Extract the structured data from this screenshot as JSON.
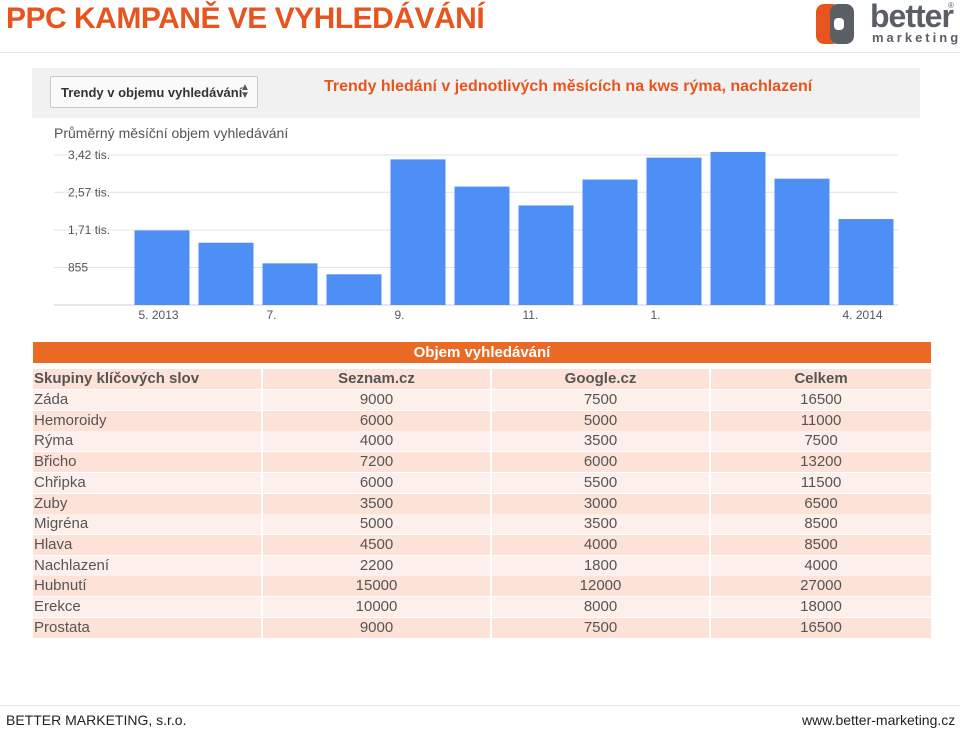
{
  "slide": {
    "title": "PPC KAMPANĚ VE VYHLEDÁVÁNÍ"
  },
  "logo": {
    "word1": "better",
    "word2": "marketing",
    "reg": "®",
    "colors": {
      "orange": "#e8541e",
      "gray": "#5a5f66"
    }
  },
  "chart": {
    "dropdown_label": "Trendy v objemu vyhledávání",
    "title": "Trendy hledání v jednotlivých měsících na kws rýma, nachlazení",
    "ylabel": "Průměrný měsíční objem vyhledávání"
  },
  "chart_data": {
    "type": "bar",
    "title": "Trendy hledání v jednotlivých měsících na kws rýma, nachlazení",
    "ylabel": "Průměrný měsíční objem vyhledávání",
    "xlabel": "",
    "yticks": [
      {
        "value": 855,
        "label": "855"
      },
      {
        "value": 1710,
        "label": "1,71 tis."
      },
      {
        "value": 2570,
        "label": "2,57 tis."
      },
      {
        "value": 3420,
        "label": "3,42 tis."
      }
    ],
    "ylim": [
      0,
      3420
    ],
    "categories": [
      "5. 2013",
      "6. 2013",
      "7. 2013",
      "8. 2013",
      "9. 2013",
      "10. 2013",
      "11. 2013",
      "12. 2013",
      "1. 2014",
      "2. 2014",
      "3. 2014",
      "4. 2014"
    ],
    "xtick_labels": [
      "5. 2013",
      "",
      "7.",
      "",
      "9.",
      "",
      "11.",
      "",
      "1.",
      "",
      "",
      "4. 2014"
    ],
    "values": [
      1700,
      1420,
      950,
      700,
      3320,
      2700,
      2270,
      2860,
      3360,
      3490,
      2880,
      1960
    ],
    "color": "#4e8ff6",
    "grid": true
  },
  "table": {
    "group_header": "Objem vyhledávání",
    "columns": [
      "Skupiny klíčových slov",
      "Seznam.cz",
      "Google.cz",
      "Celkem"
    ],
    "rows": [
      [
        "Záda",
        "9000",
        "7500",
        "16500"
      ],
      [
        "Hemoroidy",
        "6000",
        "5000",
        "11000"
      ],
      [
        "Rýma",
        "4000",
        "3500",
        "7500"
      ],
      [
        "Břicho",
        "7200",
        "6000",
        "13200"
      ],
      [
        "Chřipka",
        "6000",
        "5500",
        "11500"
      ],
      [
        "Zuby",
        "3500",
        "3000",
        "6500"
      ],
      [
        "Migréna",
        "5000",
        "3500",
        "8500"
      ],
      [
        "Hlava",
        "4500",
        "4000",
        "8500"
      ],
      [
        "Nachlazení",
        "2200",
        "1800",
        "4000"
      ],
      [
        "Hubnutí",
        "15000",
        "12000",
        "27000"
      ],
      [
        "Erekce",
        "10000",
        "8000",
        "18000"
      ],
      [
        "Prostata",
        "9000",
        "7500",
        "16500"
      ]
    ]
  },
  "footer": {
    "left": "BETTER MARKETING, s.r.o.",
    "right": "www.better-marketing.cz"
  }
}
